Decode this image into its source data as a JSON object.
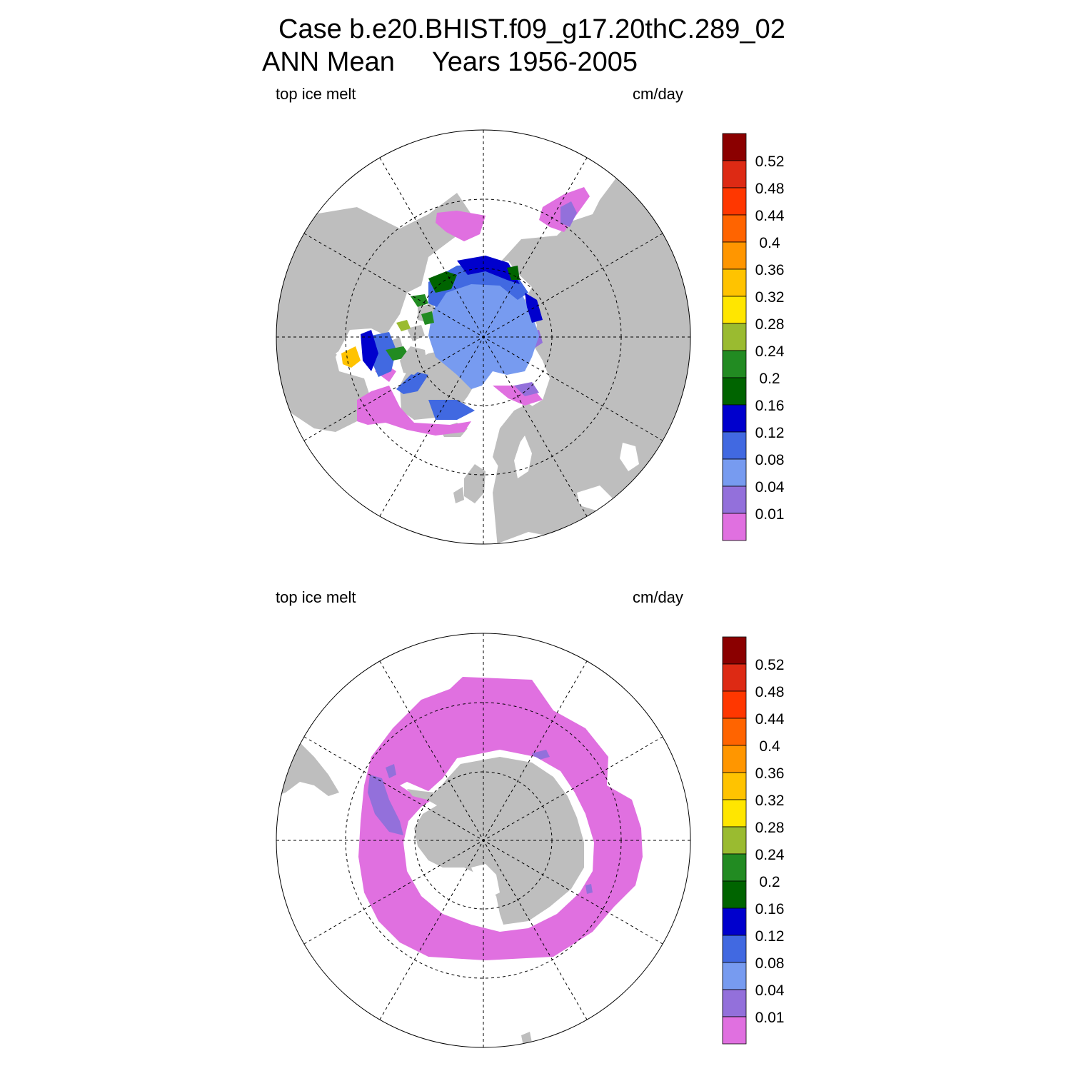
{
  "header": {
    "title_line1": "Case b.e20.BHIST.f09_g17.20thC.289_02",
    "title_line2": "ANN Mean     Years 1956-2005"
  },
  "panels": [
    {
      "id": "north",
      "left_label": "top ice melt",
      "right_label": "cm/day"
    },
    {
      "id": "south",
      "left_label": "top ice melt",
      "right_label": "cm/day"
    }
  ],
  "colorbar": {
    "labels": [
      "0.52",
      "0.48",
      "0.44",
      "0.4",
      "0.36",
      "0.32",
      "0.28",
      "0.24",
      "0.2",
      "0.16",
      "0.12",
      "0.08",
      "0.04",
      "0.01"
    ],
    "colors_top_to_bottom": [
      "#8b0000",
      "#dd2a14",
      "#ff3700",
      "#ff6400",
      "#ff9600",
      "#ffc300",
      "#ffe600",
      "#9abb30",
      "#228b22",
      "#006400",
      "#0000cd",
      "#4169e1",
      "#779bf0",
      "#9370db",
      "#e070e0"
    ]
  },
  "map_colors": {
    "land": "#bebebe",
    "ocean": "#ffffff",
    "melt_001": "#e070e0",
    "melt_004": "#9370db",
    "melt_008": "#779bf0",
    "melt_012": "#4169e1",
    "melt_016": "#0000cd",
    "melt_020": "#006400",
    "melt_024": "#228b22",
    "melt_028": "#9abb30",
    "melt_032": "#ffc300"
  }
}
